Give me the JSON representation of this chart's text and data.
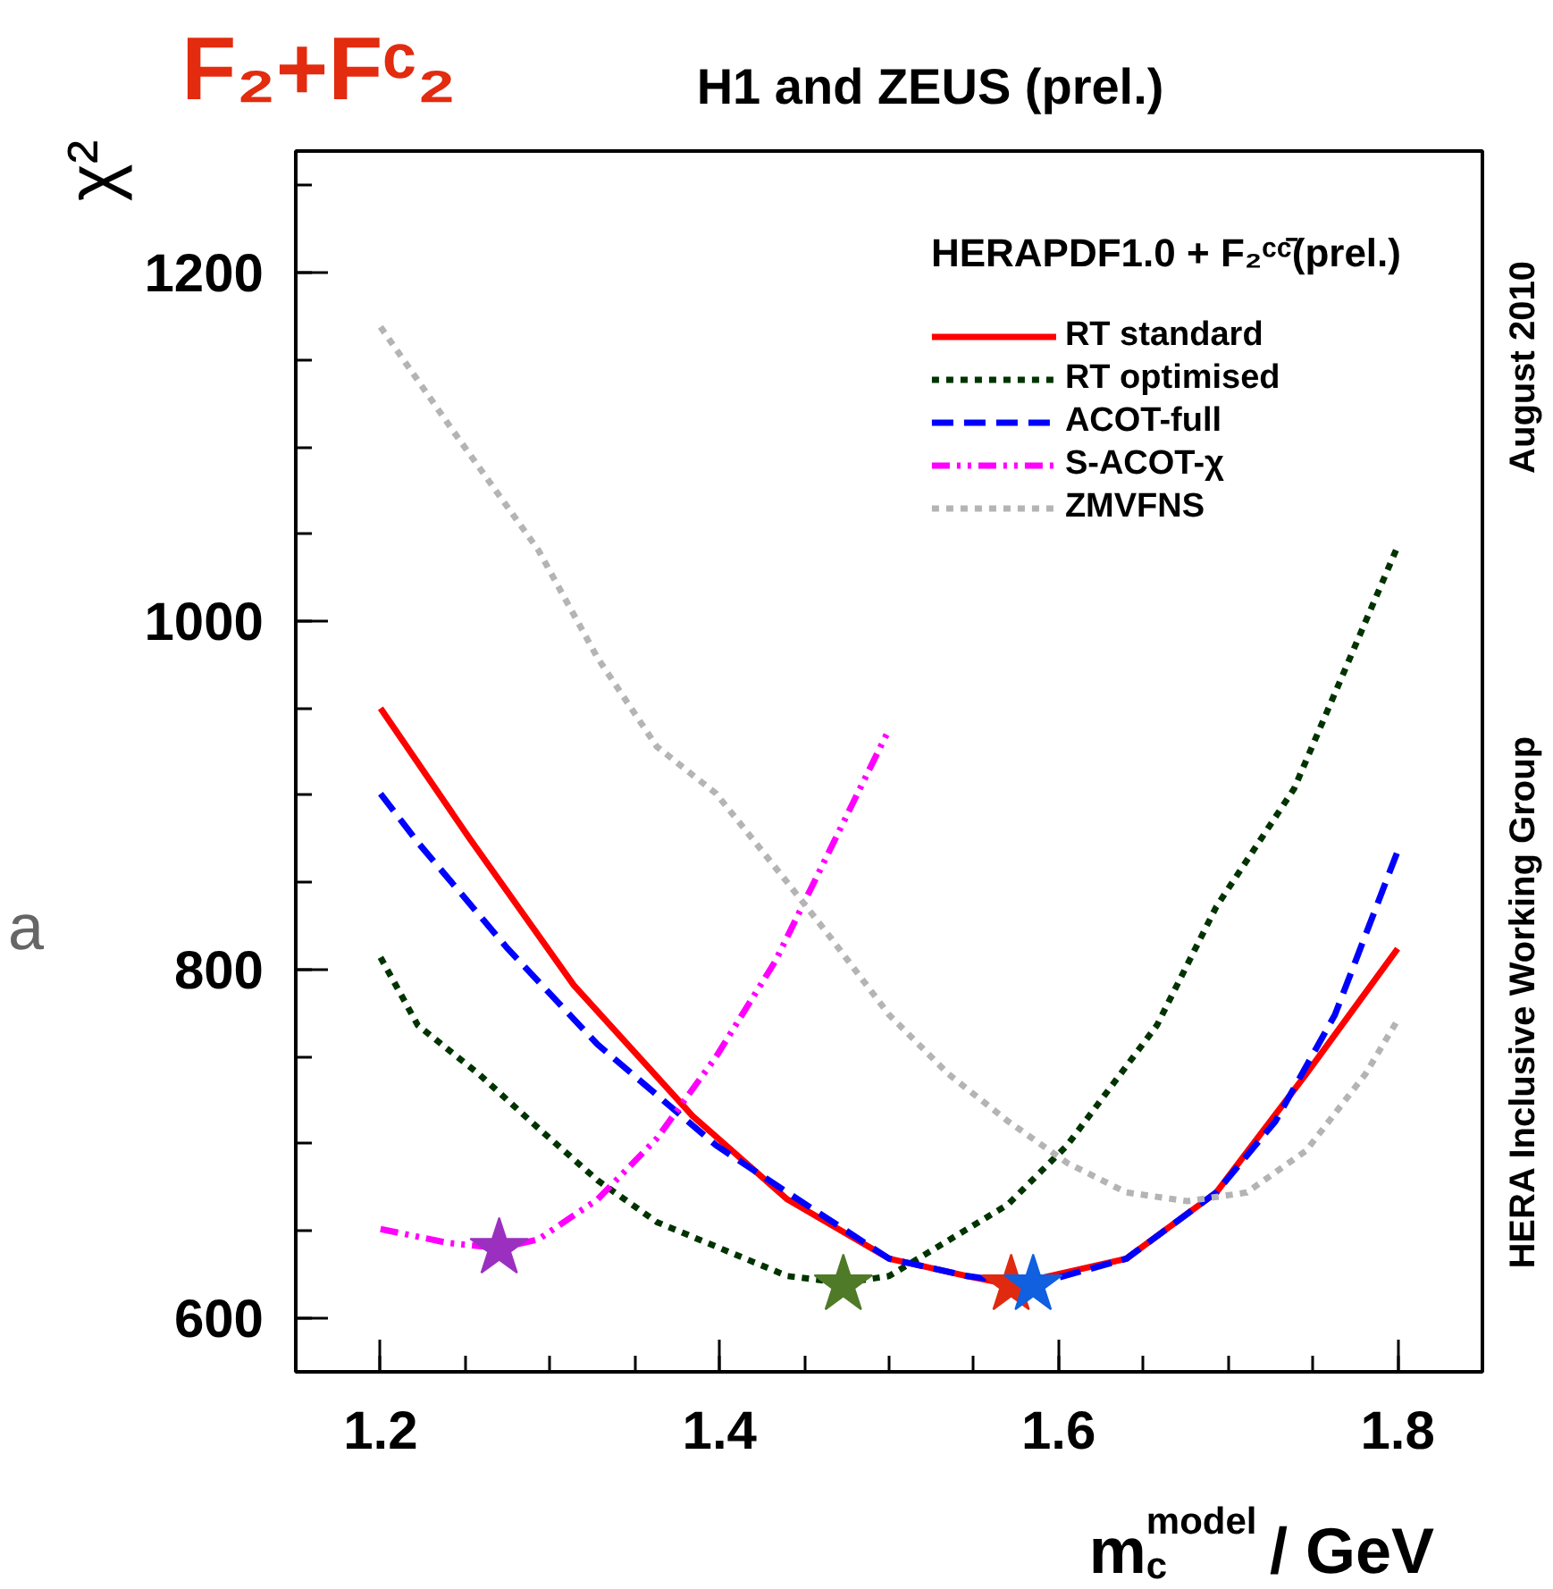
{
  "chart_data": {
    "type": "line",
    "title": "H1 and ZEUS (prel.)",
    "xlabel": "m$^{model}$$_{c}$ / GeV",
    "ylabel": "χ²",
    "legend_title": "HERAPDF1.0 + F₂ᶜᶜ̄(prel.)",
    "annotations": [
      "F₂+Fᶜ₂",
      "August 2010",
      "HERA Inclusive Working Group",
      "a"
    ],
    "xlim": [
      1.15,
      1.85
    ],
    "ylim": [
      569,
      1270
    ],
    "xticks": [
      1.2,
      1.4,
      1.6,
      1.8
    ],
    "yticks": [
      600,
      800,
      1000,
      1200
    ],
    "grid": false,
    "legend": "top right",
    "marker": "none",
    "series": [
      {
        "name": "RT standard",
        "color": "#ff0000",
        "line_style": "solid",
        "x": [
          1.2,
          1.252,
          1.314,
          1.384,
          1.44,
          1.5,
          1.546,
          1.572,
          1.64,
          1.693,
          1.746,
          1.8
        ],
        "values": [
          950,
          876,
          791,
          716,
          668,
          634,
          624,
          619,
          634,
          672,
          740,
          812
        ]
      },
      {
        "name": "RT optimised",
        "color": "#003300",
        "line_style": "dotted",
        "x": [
          1.2,
          1.222,
          1.258,
          1.293,
          1.328,
          1.363,
          1.44,
          1.473,
          1.5,
          1.57,
          1.605,
          1.658,
          1.693,
          1.739,
          1.8
        ],
        "values": [
          807,
          768,
          740,
          709,
          679,
          655,
          624,
          620,
          624,
          665,
          699,
          768,
          836,
          904,
          1043
        ]
      },
      {
        "name": "ACOT-full",
        "color": "#0000ff",
        "line_style": "dashed",
        "x": [
          1.2,
          1.222,
          1.275,
          1.328,
          1.398,
          1.44,
          1.5,
          1.546,
          1.585,
          1.64,
          1.693,
          1.728,
          1.763,
          1.8
        ],
        "values": [
          901,
          873,
          812,
          757,
          699,
          672,
          634,
          624,
          619,
          634,
          672,
          713,
          774,
          868
        ]
      },
      {
        "name": "S-ACOT-χ",
        "color": "#ff00ff",
        "line_style": "dashdot",
        "x": [
          1.2,
          1.24,
          1.27,
          1.293,
          1.328,
          1.363,
          1.398,
          1.433,
          1.5
        ],
        "values": [
          651,
          643,
          640,
          645,
          668,
          703,
          750,
          805,
          938
        ]
      },
      {
        "name": "ZMVFNS",
        "color": "#b4b4b4",
        "line_style": "dotted",
        "x": [
          1.2,
          1.243,
          1.293,
          1.328,
          1.363,
          1.398,
          1.44,
          1.465,
          1.5,
          1.535,
          1.57,
          1.605,
          1.64,
          1.676,
          1.711,
          1.746,
          1.781,
          1.8
        ],
        "values": [
          1169,
          1109,
          1041,
          979,
          928,
          901,
          850,
          819,
          774,
          740,
          713,
          689,
          672,
          667,
          672,
          696,
          740,
          771
        ]
      },
      {
        "type": "scatter",
        "marker": "star",
        "x": [
          1.27,
          1.473,
          1.572,
          1.585
        ],
        "values": [
          640,
          619,
          619,
          619
        ],
        "colors": [
          "#9b30c0",
          "#4f7a28",
          "#e02a10",
          "#1060e0"
        ]
      }
    ]
  }
}
